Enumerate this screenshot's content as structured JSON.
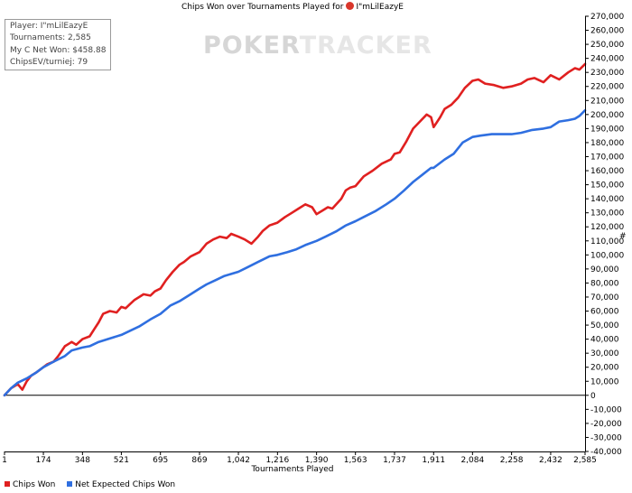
{
  "chart_data": {
    "type": "line",
    "title_prefix": "Chips Won over Tournaments Played for",
    "player_name": "I\"mLilEazyE",
    "xlabel": "Tournaments Played",
    "ylabel": "#",
    "xlim": [
      1,
      2585
    ],
    "ylim": [
      -40000,
      270000
    ],
    "x_ticks": [
      "1",
      "174",
      "348",
      "521",
      "695",
      "869",
      "1,042",
      "1,216",
      "1,390",
      "1,563",
      "1,737",
      "1,911",
      "2,084",
      "2,258",
      "2,432",
      "2,585"
    ],
    "y_tick_step": 10000,
    "grid": false,
    "legend_position": "bottom-left",
    "series": [
      {
        "name": "Chips Won",
        "color": "#e02020",
        "x": [
          1,
          30,
          60,
          80,
          100,
          120,
          140,
          174,
          190,
          220,
          240,
          270,
          290,
          300,
          320,
          348,
          380,
          400,
          420,
          440,
          470,
          500,
          521,
          540,
          560,
          580,
          600,
          620,
          650,
          670,
          695,
          720,
          750,
          780,
          800,
          830,
          869,
          900,
          930,
          960,
          990,
          1010,
          1042,
          1070,
          1100,
          1130,
          1150,
          1180,
          1216,
          1250,
          1280,
          1310,
          1340,
          1370,
          1390,
          1420,
          1440,
          1460,
          1500,
          1520,
          1540,
          1563,
          1600,
          1640,
          1680,
          1720,
          1737,
          1760,
          1790,
          1820,
          1850,
          1880,
          1900,
          1911,
          1940,
          1960,
          1990,
          2020,
          2050,
          2084,
          2110,
          2140,
          2180,
          2220,
          2258,
          2300,
          2330,
          2360,
          2400,
          2432,
          2470,
          2510,
          2540,
          2560,
          2585
        ],
        "values": [
          0,
          5000,
          8000,
          4000,
          10000,
          14000,
          16000,
          20000,
          22000,
          24000,
          28000,
          35000,
          37000,
          38000,
          36000,
          40000,
          42000,
          47000,
          52000,
          58000,
          60000,
          59000,
          63000,
          62000,
          65000,
          68000,
          70000,
          72000,
          71000,
          74000,
          76000,
          82000,
          88000,
          93000,
          95000,
          99000,
          102000,
          108000,
          111000,
          113000,
          112000,
          115000,
          113000,
          111000,
          108000,
          113000,
          117000,
          121000,
          123000,
          127000,
          130000,
          133000,
          136000,
          134000,
          129000,
          132000,
          134000,
          133000,
          140000,
          146000,
          148000,
          149000,
          156000,
          160000,
          165000,
          168000,
          172000,
          173000,
          181000,
          190000,
          195000,
          200000,
          198000,
          191000,
          198000,
          204000,
          207000,
          212000,
          219000,
          224000,
          225000,
          222000,
          221000,
          219000,
          220000,
          222000,
          225000,
          226000,
          223000,
          228000,
          225000,
          230000,
          233000,
          232000,
          236000
        ]
      },
      {
        "name": "Net Expected Chips Won",
        "color": "#2f6fe0",
        "x": [
          1,
          30,
          60,
          100,
          140,
          174,
          220,
          270,
          300,
          348,
          380,
          420,
          460,
          521,
          560,
          600,
          650,
          695,
          740,
          780,
          820,
          869,
          900,
          940,
          980,
          1042,
          1080,
          1130,
          1180,
          1216,
          1260,
          1300,
          1340,
          1390,
          1430,
          1480,
          1520,
          1563,
          1600,
          1650,
          1700,
          1737,
          1780,
          1820,
          1860,
          1900,
          1911,
          1960,
          2000,
          2040,
          2084,
          2120,
          2170,
          2200,
          2258,
          2300,
          2350,
          2400,
          2432,
          2470,
          2510,
          2540,
          2560,
          2585
        ],
        "values": [
          0,
          5000,
          9000,
          12000,
          16000,
          20000,
          24000,
          28000,
          32000,
          34000,
          35000,
          38000,
          40000,
          43000,
          46000,
          49000,
          54000,
          58000,
          64000,
          67000,
          71000,
          76000,
          79000,
          82000,
          85000,
          88000,
          91000,
          95000,
          99000,
          100000,
          102000,
          104000,
          107000,
          110000,
          113000,
          117000,
          121000,
          124000,
          127000,
          131000,
          136000,
          140000,
          146000,
          152000,
          157000,
          162000,
          162000,
          168000,
          172000,
          180000,
          184000,
          185000,
          186000,
          186000,
          186000,
          187000,
          189000,
          190000,
          191000,
          195000,
          196000,
          197000,
          199000,
          203000
        ]
      }
    ]
  },
  "stats": {
    "player_line": "Player: I\"mLilEazyE",
    "tournaments_line": "Tournaments: 2,585",
    "net_won_line": "My C Net Won: $458.88",
    "chipsev_line": "ChipsEV/turniej: 79"
  },
  "watermark": {
    "part1": "POKER",
    "part2": "TRACKER"
  }
}
